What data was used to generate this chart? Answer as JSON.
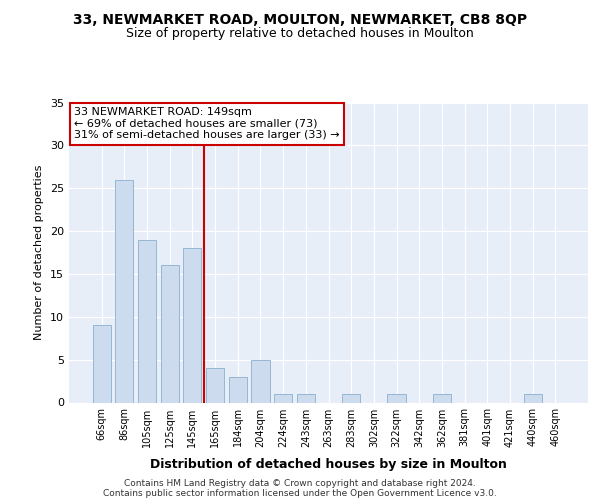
{
  "title": "33, NEWMARKET ROAD, MOULTON, NEWMARKET, CB8 8QP",
  "subtitle": "Size of property relative to detached houses in Moulton",
  "xlabel": "Distribution of detached houses by size in Moulton",
  "ylabel": "Number of detached properties",
  "categories": [
    "66sqm",
    "86sqm",
    "105sqm",
    "125sqm",
    "145sqm",
    "165sqm",
    "184sqm",
    "204sqm",
    "224sqm",
    "243sqm",
    "263sqm",
    "283sqm",
    "302sqm",
    "322sqm",
    "342sqm",
    "362sqm",
    "381sqm",
    "401sqm",
    "421sqm",
    "440sqm",
    "460sqm"
  ],
  "values": [
    9,
    26,
    19,
    16,
    18,
    4,
    3,
    5,
    1,
    1,
    0,
    1,
    0,
    1,
    0,
    1,
    0,
    0,
    0,
    1,
    0
  ],
  "bar_color": "#ccdcee",
  "bar_edge_color": "#8ab0d0",
  "fig_background": "#ffffff",
  "ax_background": "#e8eef8",
  "grid_color": "#ffffff",
  "vline_x": 4.5,
  "vline_color": "#cc0000",
  "annotation_line1": "33 NEWMARKET ROAD: 149sqm",
  "annotation_line2": "← 69% of detached houses are smaller (73)",
  "annotation_line3": "31% of semi-detached houses are larger (33) →",
  "annotation_box_color": "#ffffff",
  "annotation_box_edge": "#cc0000",
  "footer_line1": "Contains HM Land Registry data © Crown copyright and database right 2024.",
  "footer_line2": "Contains public sector information licensed under the Open Government Licence v3.0.",
  "ylim": [
    0,
    35
  ],
  "yticks": [
    0,
    5,
    10,
    15,
    20,
    25,
    30,
    35
  ]
}
